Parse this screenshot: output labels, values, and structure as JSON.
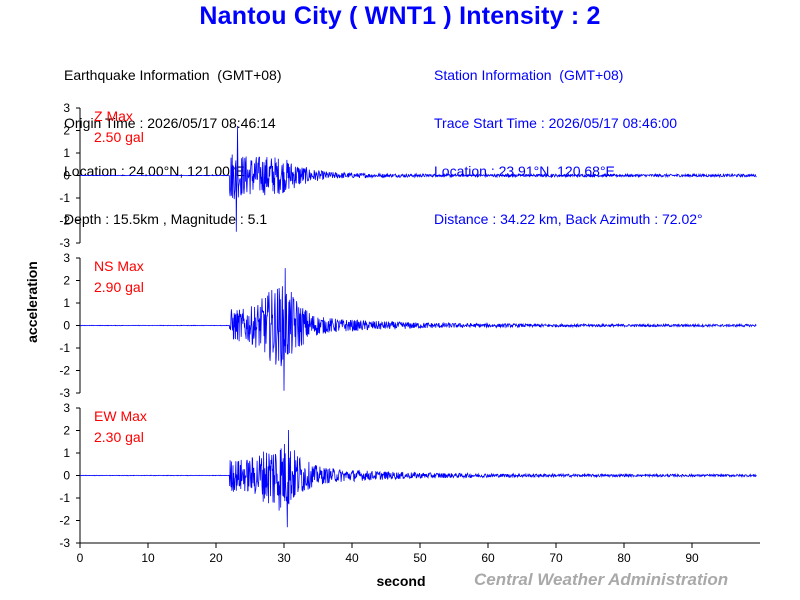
{
  "title": "Nantou City ( WNT1 ) Intensity : 2",
  "earthquake_info": {
    "header": "Earthquake Information  (GMT+08)",
    "origin_time": "Origin Time : 2026/05/17 08:46:14",
    "location": "Location : 24.00°N, 121.00°E",
    "depth_magnitude": "Depth : 15.5km , Magnitude : 5.1"
  },
  "station_info": {
    "header": "Station Information  (GMT+08)",
    "trace_start": "Trace Start Time : 2026/05/17 08:46:00",
    "location": "Location : 23.91°N, 120.68°E",
    "distance_azimuth": "Distance : 34.22 km, Back Azimuth : 72.02°"
  },
  "credit": "Central Weather Administration",
  "colors": {
    "title": "#0000ff",
    "trace": "#0000ff",
    "max_label": "#ff0000",
    "axis": "#000000",
    "credit": "#a9a9a9"
  },
  "chart_data": {
    "type": "line",
    "xlabel": "second",
    "ylabel": "acceleration",
    "xlim": [
      0,
      100
    ],
    "x_ticks": [
      0,
      10,
      20,
      30,
      40,
      50,
      60,
      70,
      80,
      90
    ],
    "ylim": [
      -3,
      3
    ],
    "y_ticks": [
      3,
      2,
      1,
      0,
      -1,
      -2,
      -3
    ],
    "onset_seconds": 22,
    "panels": [
      {
        "component": "Z",
        "max_label": "Z Max",
        "max_value": "2.50 gal",
        "peak": 2.5,
        "peak_time": 23
      },
      {
        "component": "NS",
        "max_label": "NS Max",
        "max_value": "2.90 gal",
        "peak": 2.9,
        "peak_time": 30
      },
      {
        "component": "EW",
        "max_label": "EW Max",
        "max_value": "2.30 gal",
        "peak": 2.3,
        "peak_time": 30.5
      }
    ]
  }
}
